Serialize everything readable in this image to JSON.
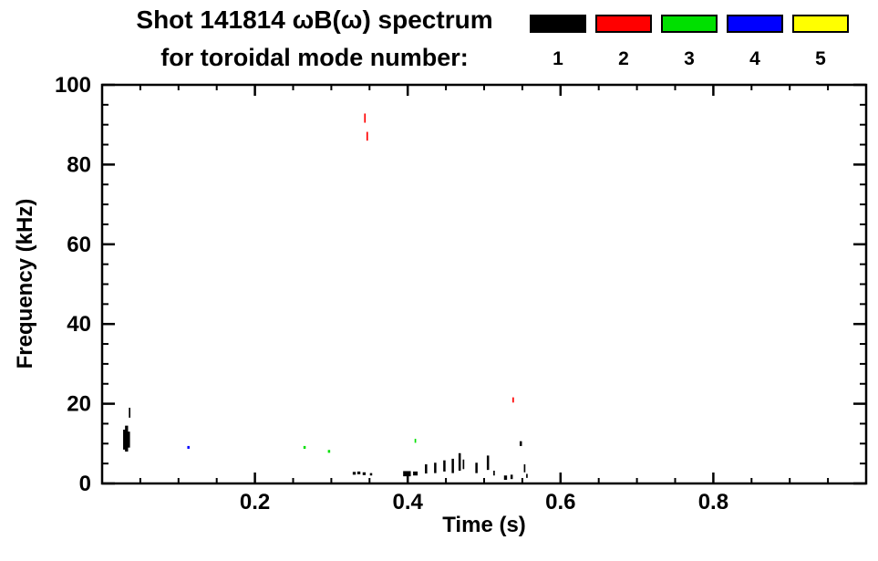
{
  "title": {
    "line1": "Shot 141814 ωB(ω) spectrum",
    "line2": "for toroidal mode number:"
  },
  "legend": {
    "modes": [
      {
        "label": "1",
        "color": "#000000"
      },
      {
        "label": "2",
        "color": "#ff0000"
      },
      {
        "label": "3",
        "color": "#00e000"
      },
      {
        "label": "4",
        "color": "#0000ff"
      },
      {
        "label": "5",
        "color": "#ffff00"
      }
    ]
  },
  "chart_data": {
    "type": "scatter",
    "title": "Shot 141814 ωB(ω) spectrum for toroidal mode number: 1, 2, 3, 4, 5",
    "xlabel": "Time (s)",
    "ylabel": "Frequency (kHz)",
    "xlim": [
      0,
      1.0
    ],
    "ylim": [
      0,
      100
    ],
    "x_ticks": [
      {
        "v": 0.2,
        "label": "0.2"
      },
      {
        "v": 0.4,
        "label": "0.4"
      },
      {
        "v": 0.6,
        "label": "0.6"
      },
      {
        "v": 0.8,
        "label": "0.8"
      }
    ],
    "x_minor_step": 0.05,
    "y_ticks": [
      {
        "v": 0,
        "label": "0"
      },
      {
        "v": 20,
        "label": "20"
      },
      {
        "v": 40,
        "label": "40"
      },
      {
        "v": 60,
        "label": "60"
      },
      {
        "v": 80,
        "label": "80"
      },
      {
        "v": 100,
        "label": "100"
      }
    ],
    "y_minor_step": 5,
    "series": [
      {
        "name": "n=1",
        "color": "#000000",
        "points": [
          {
            "t": 0.029,
            "f1": 8.5,
            "f2": 13.5,
            "dt": 0.003
          },
          {
            "t": 0.032,
            "f1": 8.0,
            "f2": 14.5,
            "dt": 0.004
          },
          {
            "t": 0.035,
            "f1": 9.0,
            "f2": 13.0,
            "dt": 0.003
          },
          {
            "t": 0.036,
            "f1": 16.5,
            "f2": 19.0,
            "dt": 0.002
          },
          {
            "t": 0.33,
            "f1": 2.2,
            "f2": 2.9,
            "dt": 0.004
          },
          {
            "t": 0.336,
            "f1": 2.3,
            "f2": 3.0,
            "dt": 0.004
          },
          {
            "t": 0.343,
            "f1": 2.1,
            "f2": 2.8,
            "dt": 0.004
          },
          {
            "t": 0.352,
            "f1": 2.0,
            "f2": 2.6,
            "dt": 0.003
          },
          {
            "t": 0.399,
            "f1": 1.8,
            "f2": 3.1,
            "dt": 0.01
          },
          {
            "t": 0.41,
            "f1": 2.0,
            "f2": 3.0,
            "dt": 0.006
          },
          {
            "t": 0.424,
            "f1": 2.5,
            "f2": 4.8,
            "dt": 0.003
          },
          {
            "t": 0.436,
            "f1": 2.6,
            "f2": 5.2,
            "dt": 0.003
          },
          {
            "t": 0.448,
            "f1": 3.0,
            "f2": 5.8,
            "dt": 0.003
          },
          {
            "t": 0.459,
            "f1": 2.6,
            "f2": 6.2,
            "dt": 0.003
          },
          {
            "t": 0.468,
            "f1": 3.2,
            "f2": 7.6,
            "dt": 0.003
          },
          {
            "t": 0.473,
            "f1": 3.6,
            "f2": 6.0,
            "dt": 0.002
          },
          {
            "t": 0.49,
            "f1": 2.6,
            "f2": 5.2,
            "dt": 0.003
          },
          {
            "t": 0.505,
            "f1": 3.4,
            "f2": 7.0,
            "dt": 0.003
          },
          {
            "t": 0.513,
            "f1": 2.0,
            "f2": 3.2,
            "dt": 0.002
          },
          {
            "t": 0.528,
            "f1": 0.9,
            "f2": 2.0,
            "dt": 0.004
          },
          {
            "t": 0.536,
            "f1": 1.1,
            "f2": 2.2,
            "dt": 0.003
          },
          {
            "t": 0.548,
            "f1": 9.4,
            "f2": 10.6,
            "dt": 0.003
          },
          {
            "t": 0.553,
            "f1": 2.8,
            "f2": 4.8,
            "dt": 0.002
          },
          {
            "t": 0.556,
            "f1": 1.4,
            "f2": 2.4,
            "dt": 0.002
          }
        ]
      },
      {
        "name": "n=2",
        "color": "#ff0000",
        "points": [
          {
            "t": 0.344,
            "f1": 90.5,
            "f2": 92.8,
            "dt": 0.002
          },
          {
            "t": 0.347,
            "f1": 86.0,
            "f2": 88.2,
            "dt": 0.002
          },
          {
            "t": 0.538,
            "f1": 20.3,
            "f2": 21.6,
            "dt": 0.002
          }
        ]
      },
      {
        "name": "n=3",
        "color": "#00e000",
        "points": [
          {
            "t": 0.265,
            "f1": 8.7,
            "f2": 9.4,
            "dt": 0.003
          },
          {
            "t": 0.297,
            "f1": 7.7,
            "f2": 8.4,
            "dt": 0.003
          },
          {
            "t": 0.41,
            "f1": 10.2,
            "f2": 11.2,
            "dt": 0.002
          }
        ]
      },
      {
        "name": "n=4",
        "color": "#0000ff",
        "points": [
          {
            "t": 0.113,
            "f1": 8.7,
            "f2": 9.4,
            "dt": 0.003
          }
        ]
      },
      {
        "name": "n=5",
        "color": "#ffff00",
        "points": []
      }
    ]
  }
}
